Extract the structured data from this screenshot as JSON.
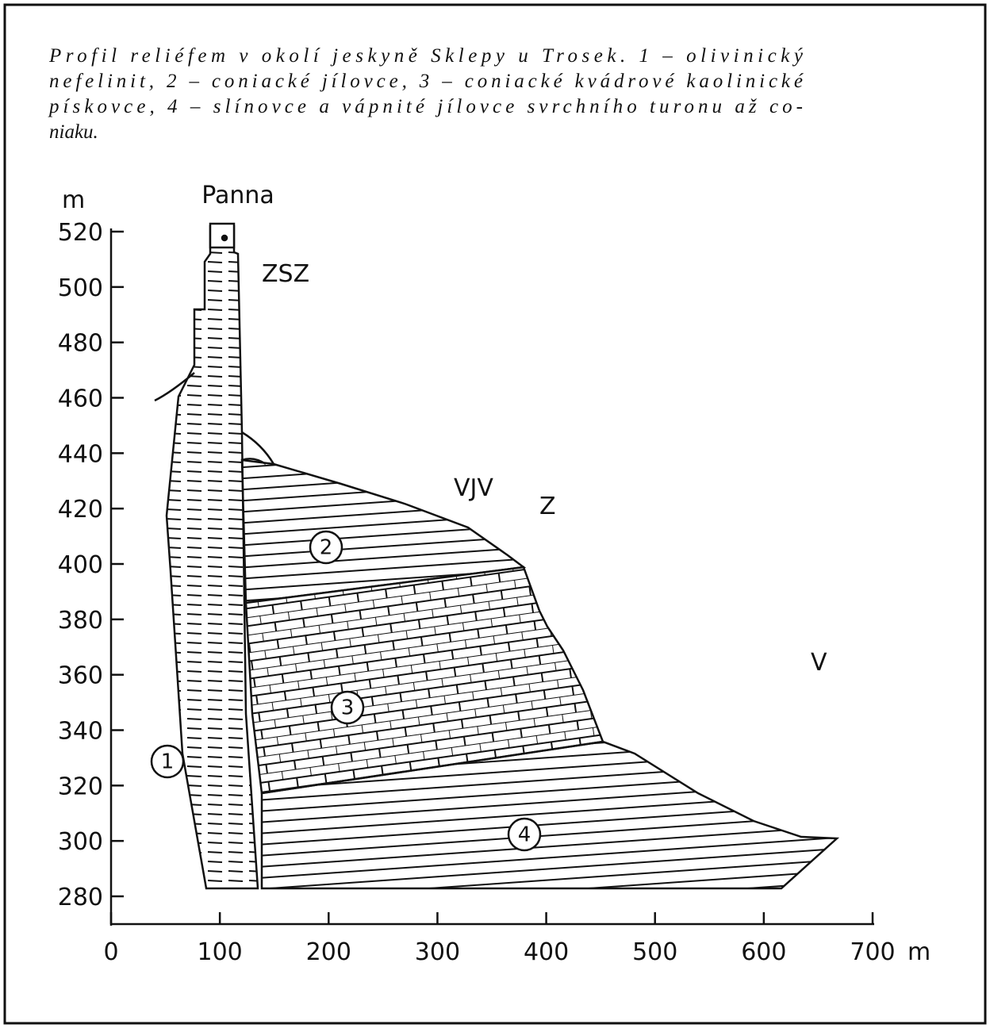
{
  "caption_lines": [
    "Profil reliéfem v okolí jeskyně Sklepy u Trosek. 1 – olivinický",
    "nefelinit, 2 – coniacké jílovce, 3 – coniacké kvádrové kaolinické",
    "pískovce, 4 – slínovce a vápnité jílovce svrchního turonu až co-",
    "niaku."
  ],
  "axes": {
    "y_unit": "m",
    "x_unit": "m",
    "yticks": [
      520,
      500,
      480,
      460,
      440,
      420,
      400,
      380,
      360,
      340,
      320,
      300,
      280
    ],
    "xticks": [
      0,
      100,
      200,
      300,
      400,
      500,
      600,
      700
    ]
  },
  "labels": {
    "peak": "Panna",
    "wnw": "ZSZ",
    "ese": "VJV",
    "w": "Z",
    "e": "V"
  },
  "units": [
    "1",
    "2",
    "3",
    "4"
  ]
}
